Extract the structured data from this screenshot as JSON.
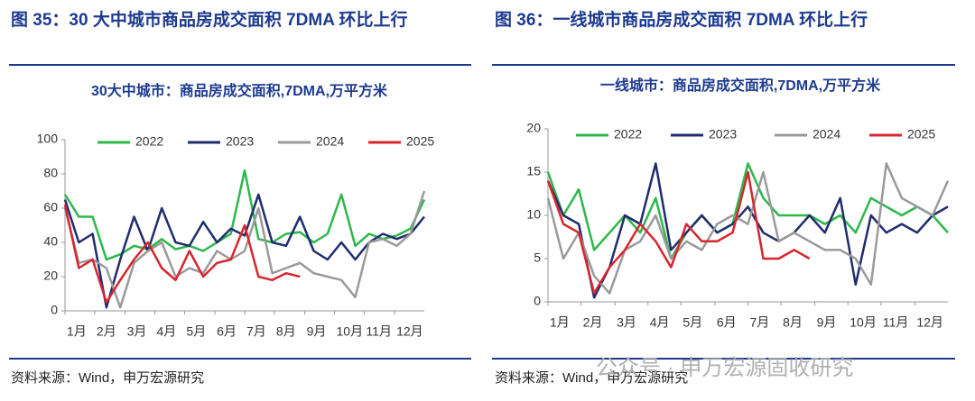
{
  "chart_data": [
    {
      "type": "line",
      "panel_title": "图 35：30 大中城市商品房成交面积 7DMA 环比上行",
      "title": "30大中城市：商品房成交面积,7DMA,万平方米",
      "source": "资料来源：Wind，申万宏源研究",
      "x": [
        0,
        2,
        4,
        6,
        8,
        10,
        12,
        14,
        16,
        18,
        20,
        22,
        24,
        26,
        28,
        30,
        32,
        34,
        36,
        38,
        40,
        42,
        44,
        46,
        48,
        50,
        52
      ],
      "xlim": [
        0,
        52
      ],
      "xticks": [
        {
          "value": 0,
          "label": "1月"
        },
        {
          "value": 4.3,
          "label": "2月"
        },
        {
          "value": 8.7,
          "label": "3月"
        },
        {
          "value": 13,
          "label": "4月"
        },
        {
          "value": 17.3,
          "label": "5月"
        },
        {
          "value": 21.7,
          "label": "6月"
        },
        {
          "value": 26,
          "label": "7月"
        },
        {
          "value": 30.3,
          "label": "8月"
        },
        {
          "value": 34.7,
          "label": "9月"
        },
        {
          "value": 39,
          "label": "10月"
        },
        {
          "value": 43.3,
          "label": "11月"
        },
        {
          "value": 47.7,
          "label": "12月"
        }
      ],
      "ylim": [
        0,
        100
      ],
      "yticks": [
        0,
        20,
        40,
        60,
        80,
        100
      ],
      "series": [
        {
          "name": "2022",
          "color": "#2db84a",
          "values": [
            68,
            55,
            55,
            30,
            33,
            38,
            36,
            42,
            36,
            38,
            35,
            40,
            45,
            82,
            42,
            40,
            45,
            46,
            40,
            45,
            68,
            38,
            45,
            42,
            44,
            48,
            65
          ]
        },
        {
          "name": "2023",
          "color": "#1f2d6e",
          "values": [
            65,
            40,
            45,
            2,
            30,
            55,
            35,
            60,
            40,
            38,
            52,
            40,
            48,
            44,
            68,
            40,
            38,
            55,
            35,
            30,
            40,
            30,
            40,
            45,
            42,
            45,
            55
          ]
        },
        {
          "name": "2024",
          "color": "#9a9a9a",
          "values": [
            60,
            28,
            30,
            25,
            2,
            28,
            35,
            40,
            20,
            25,
            22,
            35,
            30,
            35,
            60,
            22,
            25,
            28,
            22,
            20,
            18,
            8,
            40,
            42,
            38,
            45,
            70
          ]
        },
        {
          "name": "2025",
          "color": "#d7262d",
          "values": [
            62,
            25,
            30,
            5,
            18,
            30,
            40,
            25,
            18,
            35,
            20,
            28,
            30,
            50,
            20,
            18,
            22,
            20,
            null,
            null,
            null,
            null,
            null,
            null,
            null,
            null,
            null
          ]
        }
      ]
    },
    {
      "type": "line",
      "panel_title": "图 36：一线城市商品房成交面积 7DMA 环比上行",
      "title": "一线城市：商品房成交面积,7DMA,万平方米",
      "source": "资料来源：Wind，申万宏源研究",
      "x": [
        0,
        2,
        4,
        6,
        8,
        10,
        12,
        14,
        16,
        18,
        20,
        22,
        24,
        26,
        28,
        30,
        32,
        34,
        36,
        38,
        40,
        42,
        44,
        46,
        48,
        50,
        52
      ],
      "xlim": [
        0,
        52
      ],
      "xticks": [
        {
          "value": 0,
          "label": "1月"
        },
        {
          "value": 4.3,
          "label": "2月"
        },
        {
          "value": 8.7,
          "label": "3月"
        },
        {
          "value": 13,
          "label": "4月"
        },
        {
          "value": 17.3,
          "label": "5月"
        },
        {
          "value": 21.7,
          "label": "6月"
        },
        {
          "value": 26,
          "label": "7月"
        },
        {
          "value": 30.3,
          "label": "8月"
        },
        {
          "value": 34.7,
          "label": "9月"
        },
        {
          "value": 39,
          "label": "10月"
        },
        {
          "value": 43.3,
          "label": "11月"
        },
        {
          "value": 47.7,
          "label": "12月"
        }
      ],
      "ylim": [
        0,
        20
      ],
      "yticks": [
        0,
        5,
        10,
        15,
        20
      ],
      "series": [
        {
          "name": "2022",
          "color": "#2db84a",
          "values": [
            15,
            10,
            13,
            6,
            8,
            10,
            8,
            12,
            5,
            8,
            10,
            8,
            9,
            16,
            12,
            10,
            10,
            10,
            9,
            10,
            8,
            12,
            11,
            10,
            11,
            10,
            8
          ]
        },
        {
          "name": "2023",
          "color": "#1f2d6e",
          "values": [
            14,
            10,
            9,
            0.5,
            4,
            10,
            9,
            16,
            6,
            8,
            10,
            8,
            9,
            11,
            8,
            7,
            8,
            10,
            8,
            12,
            2,
            10,
            8,
            9,
            8,
            10,
            11
          ]
        },
        {
          "name": "2024",
          "color": "#9a9a9a",
          "values": [
            12,
            5,
            8,
            3,
            1,
            6,
            7,
            10,
            5,
            7,
            6,
            9,
            10,
            9,
            15,
            7,
            8,
            7,
            6,
            6,
            5,
            2,
            16,
            12,
            11,
            10,
            14
          ]
        },
        {
          "name": "2025",
          "color": "#d7262d",
          "values": [
            14,
            9,
            8,
            1,
            4,
            6,
            9,
            7,
            4,
            9,
            7,
            7,
            8,
            15,
            5,
            5,
            6,
            5,
            null,
            null,
            null,
            null,
            null,
            null,
            null,
            null,
            null
          ]
        }
      ]
    }
  ],
  "watermark": "公众号 · 申万宏源固收研究"
}
